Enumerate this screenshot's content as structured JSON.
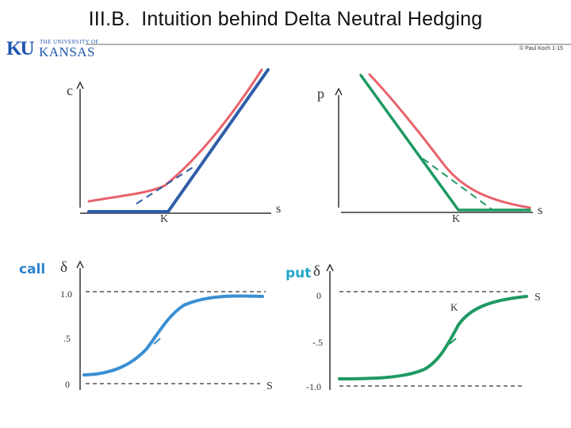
{
  "slide": {
    "section": "III.B.",
    "title": "Intuition behind Delta Neutral Hedging",
    "copyright": "© Paul Koch 1-15",
    "logo": {
      "short": "KU",
      "university": "THE UNIVERSITY OF",
      "name": "KANSAS"
    }
  },
  "panels": {
    "call_price": {
      "y_label": "c",
      "x_label": "s",
      "strike_label": "K",
      "colors": {
        "option_value": "#e8626b",
        "payoff": "#2f5da8",
        "tangent": "#2f5da8"
      }
    },
    "put_price": {
      "y_label": "p",
      "x_label": "s",
      "strike_label": "K",
      "colors": {
        "option_value": "#e8626b",
        "payoff": "#1f9a62",
        "tangent": "#1f9a62"
      }
    },
    "call_delta": {
      "tag": "call",
      "y_label": "δ",
      "x_label": "S",
      "ticks": [
        "1.0",
        ".5",
        "0"
      ],
      "colors": {
        "curve": "#3a8fd2",
        "tag": "#2a83d0"
      }
    },
    "put_delta": {
      "tag": "put",
      "y_label": "δ",
      "x_label": "S",
      "strike_label": "K",
      "ticks": [
        "0",
        "-.5",
        "-1.0"
      ],
      "colors": {
        "curve": "#1f9a62",
        "tag": "#22a6c9"
      }
    }
  }
}
